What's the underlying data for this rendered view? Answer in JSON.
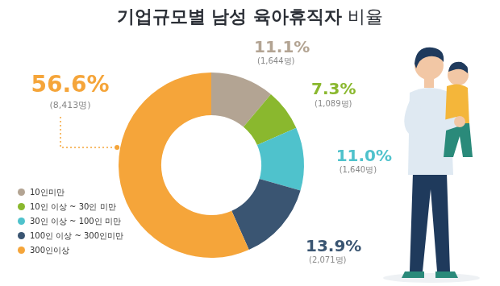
{
  "chart_data": {
    "type": "doughnut",
    "title": "기업규모별 남성 육아휴직자 비율",
    "categories": [
      "10인미만",
      "10인 이상 ~ 30인 미만",
      "30인 이상 ~ 100인 미만",
      "100인 이상 ~ 300인미만",
      "300인이상"
    ],
    "values": [
      11.1,
      7.3,
      11.0,
      13.9,
      56.6
    ],
    "value_labels": [
      "11.1%",
      "7.3%",
      "11.0%",
      "13.9%",
      "56.6%"
    ],
    "counts": [
      1644,
      1089,
      1640,
      2071,
      8413
    ],
    "count_labels": [
      "(1,644명)",
      "(1,089명)",
      "(1,640명)",
      "(2,071명)",
      "(8,413명)"
    ],
    "colors": [
      "#b3a493",
      "#8ab82e",
      "#4fc2cc",
      "#3a5572",
      "#f5a53a"
    ],
    "data_labels": true,
    "legend": "lower left"
  }
}
